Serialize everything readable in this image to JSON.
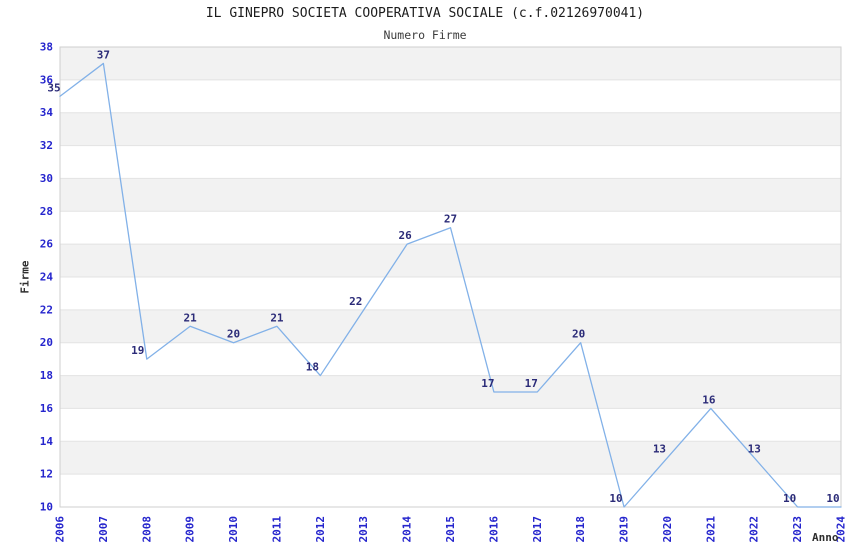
{
  "chart_data": {
    "type": "line",
    "title": "IL GINEPRO SOCIETA COOPERATIVA SOCIALE (c.f.02126970041)",
    "subtitle": "Numero Firme",
    "xlabel": "Anno",
    "ylabel": "Firme",
    "x": [
      "2006",
      "2007",
      "2008",
      "2009",
      "2010",
      "2011",
      "2012",
      "2013",
      "2014",
      "2015",
      "2016",
      "2017",
      "2018",
      "2019",
      "2020",
      "2021",
      "2022",
      "2023",
      "2024"
    ],
    "series": [
      {
        "name": "Numero Firme",
        "values": [
          35,
          37,
          19,
          21,
          20,
          21,
          18,
          22,
          26,
          27,
          17,
          17,
          20,
          10,
          13,
          16,
          13,
          10,
          10
        ]
      }
    ],
    "ylim": [
      10,
      38
    ],
    "yticks": [
      10,
      12,
      14,
      16,
      18,
      20,
      22,
      24,
      26,
      28,
      30,
      32,
      34,
      36,
      38
    ],
    "point_labels": [
      35,
      37,
      19,
      21,
      20,
      21,
      18,
      22,
      26,
      27,
      17,
      17,
      20,
      10,
      13,
      16,
      13,
      10,
      10
    ],
    "legend": "none",
    "grid": "horizontal gridlines every 2 units with alternating gray/white bands",
    "colors": {
      "line": "#82b1e8",
      "tick_label": "#2525cd",
      "point_label": "#2b2b78",
      "band": "#f2f2f2",
      "grid_line": "#e3e3e3",
      "plot_border": "#cfcfcf",
      "title_text": "#1c1c1c",
      "axis_title_text": "#2e2e2e"
    }
  }
}
